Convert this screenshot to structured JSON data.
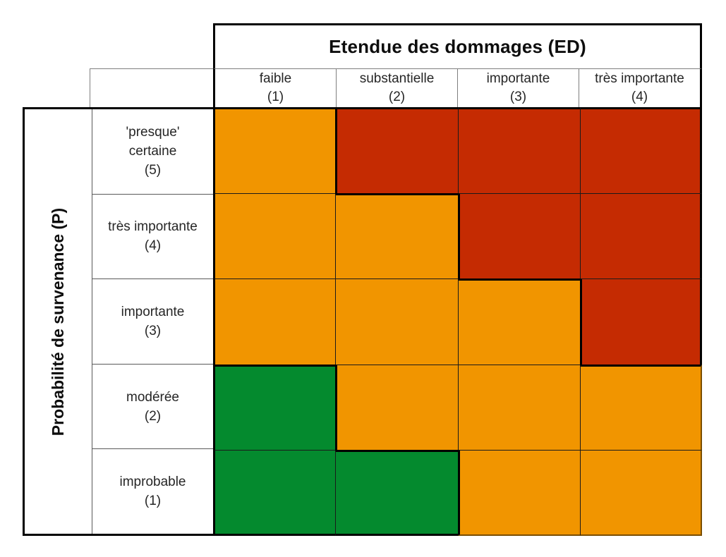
{
  "diagram": {
    "title": "Etendue des dommages (ED)",
    "y_axis_title": "Probabilité de survenance (P)"
  },
  "columns": [
    {
      "label": "faible",
      "num": "(1)"
    },
    {
      "label": "substantielle",
      "num": "(2)"
    },
    {
      "label": "importante",
      "num": "(3)"
    },
    {
      "label": "très importante",
      "num": "(4)"
    }
  ],
  "rows": [
    {
      "lines": [
        "'presque'",
        "certaine"
      ],
      "num": "(5)"
    },
    {
      "lines": [
        "très importante"
      ],
      "num": "(4)"
    },
    {
      "lines": [
        "importante"
      ],
      "num": "(3)"
    },
    {
      "lines": [
        "modérée"
      ],
      "num": "(2)"
    },
    {
      "lines": [
        "improbable"
      ],
      "num": "(1)"
    }
  ],
  "matrix": {
    "zones": [
      [
        "orange",
        "red",
        "red",
        "red"
      ],
      [
        "orange",
        "orange",
        "red",
        "red"
      ],
      [
        "orange",
        "orange",
        "orange",
        "red"
      ],
      [
        "green",
        "orange",
        "orange",
        "orange"
      ],
      [
        "green",
        "green",
        "orange",
        "orange"
      ]
    ]
  },
  "chart_data": {
    "type": "heatmap",
    "title": "Etendue des dommages (ED)",
    "ylabel": "Probabilité de survenance (P)",
    "x_categories": [
      "faible (1)",
      "substantielle (2)",
      "importante (3)",
      "très importante (4)"
    ],
    "y_categories": [
      "'presque' certaine (5)",
      "très importante (4)",
      "importante (3)",
      "modérée (2)",
      "improbable (1)"
    ],
    "cell_levels": [
      [
        "orange",
        "red",
        "red",
        "red"
      ],
      [
        "orange",
        "orange",
        "red",
        "red"
      ],
      [
        "orange",
        "orange",
        "orange",
        "red"
      ],
      [
        "green",
        "orange",
        "orange",
        "orange"
      ],
      [
        "green",
        "green",
        "orange",
        "orange"
      ]
    ]
  },
  "colors": {
    "orange": "#F19500",
    "red": "#C52B02",
    "green": "#048A2E",
    "thin_line": "#1a1a1a",
    "thick_line": "#000000",
    "header_line": "#7f7f7f",
    "outer_orange_edge": "#7a4e00"
  }
}
